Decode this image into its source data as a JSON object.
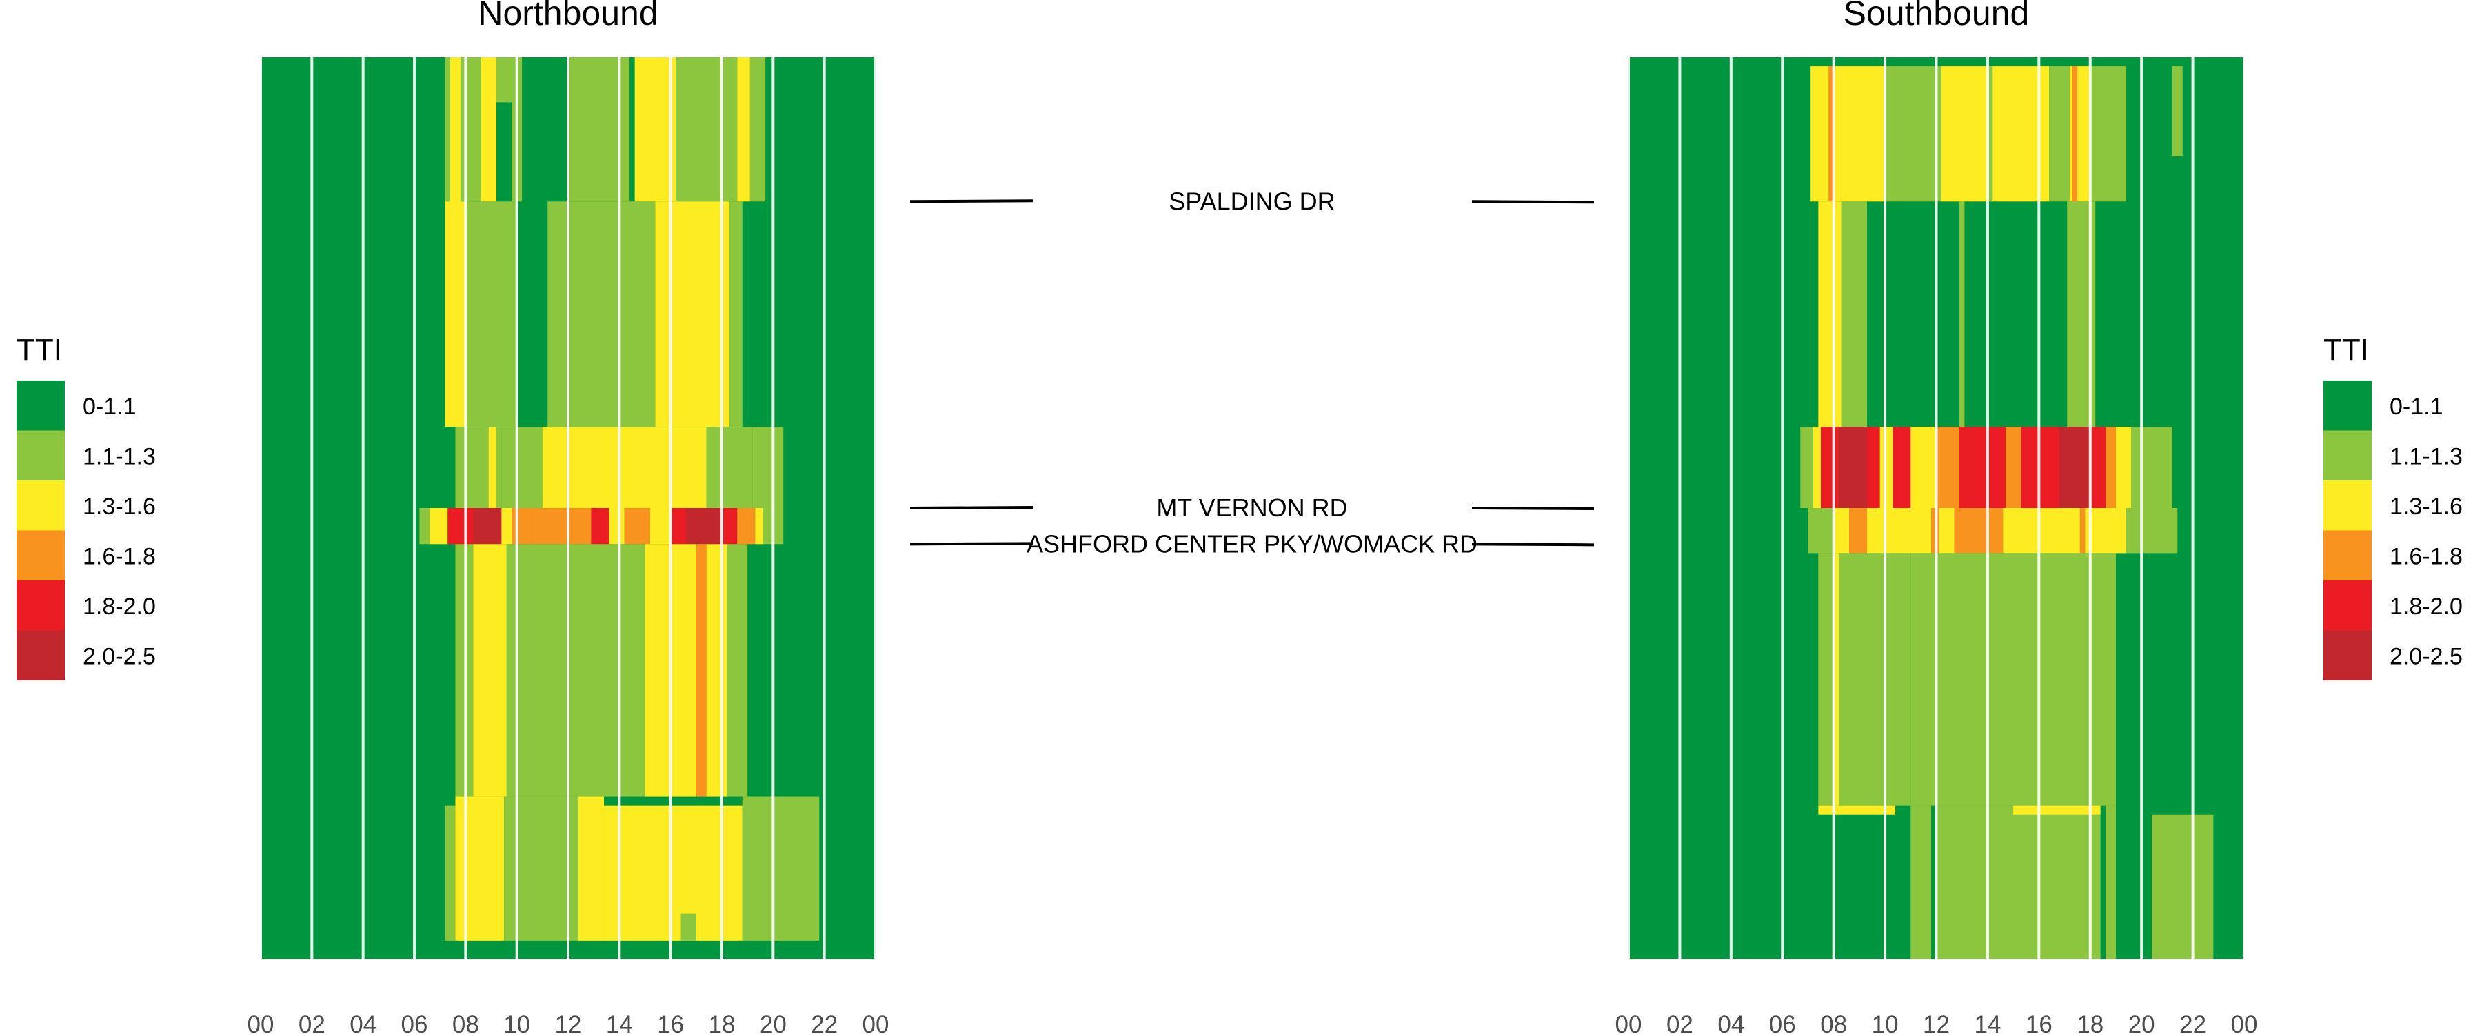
{
  "chart_data": {
    "type": "heatmap",
    "metric": "TTI",
    "x_ticks": [
      "00",
      "02",
      "04",
      "06",
      "08",
      "10",
      "12",
      "14",
      "16",
      "18",
      "20",
      "22",
      "00"
    ],
    "x_range_hours": [
      0,
      24
    ],
    "legend": {
      "title": "TTI",
      "placement": "left and right",
      "bins": [
        {
          "label": "0-1.1",
          "color": "#00963f"
        },
        {
          "label": "1.1-1.3",
          "color": "#8cc63f"
        },
        {
          "label": "1.3-1.6",
          "color": "#fcec21"
        },
        {
          "label": "1.6-1.8",
          "color": "#f7931e"
        },
        {
          "label": "1.8-2.0",
          "color": "#ec1c24"
        },
        {
          "label": "2.0-2.5",
          "color": "#c1272d"
        }
      ]
    },
    "segment_extent": [
      0,
      100
    ],
    "landmarks": [
      {
        "label": "SPALDING DR",
        "nb_pos": 16,
        "sb_pos": 16
      },
      {
        "label": "MT VERNON RD",
        "nb_pos": 50,
        "sb_pos": 50
      },
      {
        "label": "ASHFORD CENTER PKY/WOMACK RD",
        "nb_pos": 54,
        "sb_pos": 54
      }
    ],
    "panels": [
      {
        "title": "Northbound",
        "background_level": "0-1.1",
        "cells": [
          {
            "h0": 7.0,
            "h1": 20.0,
            "s0": 0,
            "s1": 16,
            "level": "0-1.1"
          },
          {
            "h0": 7.2,
            "h1": 8.6,
            "s0": 0,
            "s1": 16,
            "level": "1.1-1.3"
          },
          {
            "h0": 7.4,
            "h1": 7.8,
            "s0": 0,
            "s1": 40,
            "level": "1.3-1.6"
          },
          {
            "h0": 8.6,
            "h1": 9.2,
            "s0": 0,
            "s1": 16,
            "level": "1.3-1.6"
          },
          {
            "h0": 9.2,
            "h1": 9.8,
            "s0": 0,
            "s1": 5,
            "level": "1.1-1.3"
          },
          {
            "h0": 9.8,
            "h1": 10.2,
            "s0": 0,
            "s1": 16,
            "level": "1.1-1.3"
          },
          {
            "h0": 12.0,
            "h1": 14.4,
            "s0": 0,
            "s1": 16,
            "level": "1.1-1.3"
          },
          {
            "h0": 14.4,
            "h1": 14.6,
            "s0": 0,
            "s1": 16,
            "level": "0-1.1"
          },
          {
            "h0": 14.6,
            "h1": 16.2,
            "s0": 0,
            "s1": 16,
            "level": "1.3-1.6"
          },
          {
            "h0": 16.2,
            "h1": 18.6,
            "s0": 0,
            "s1": 16,
            "level": "1.1-1.3"
          },
          {
            "h0": 18.6,
            "h1": 19.1,
            "s0": 0,
            "s1": 16,
            "level": "1.3-1.6"
          },
          {
            "h0": 19.1,
            "h1": 19.7,
            "s0": 0,
            "s1": 16,
            "level": "1.1-1.3"
          },
          {
            "h0": 7.2,
            "h1": 8.0,
            "s0": 16,
            "s1": 41,
            "level": "1.3-1.6"
          },
          {
            "h0": 8.0,
            "h1": 10.0,
            "s0": 16,
            "s1": 41,
            "level": "1.1-1.3"
          },
          {
            "h0": 11.2,
            "h1": 15.4,
            "s0": 16,
            "s1": 41,
            "level": "1.1-1.3"
          },
          {
            "h0": 15.4,
            "h1": 18.3,
            "s0": 16,
            "s1": 41,
            "level": "1.3-1.6"
          },
          {
            "h0": 18.3,
            "h1": 18.8,
            "s0": 16,
            "s1": 41,
            "level": "1.1-1.3"
          },
          {
            "h0": 7.6,
            "h1": 9.4,
            "s0": 41,
            "s1": 50,
            "level": "1.1-1.3"
          },
          {
            "h0": 8.9,
            "h1": 9.2,
            "s0": 41,
            "s1": 50,
            "level": "1.3-1.6"
          },
          {
            "h0": 9.4,
            "h1": 11.0,
            "s0": 41,
            "s1": 50,
            "level": "1.1-1.3"
          },
          {
            "h0": 11.0,
            "h1": 17.4,
            "s0": 41,
            "s1": 50,
            "level": "1.3-1.6"
          },
          {
            "h0": 17.4,
            "h1": 19.2,
            "s0": 41,
            "s1": 50,
            "level": "1.1-1.3"
          },
          {
            "h0": 19.2,
            "h1": 20.4,
            "s0": 41,
            "s1": 50,
            "level": "1.1-1.3"
          },
          {
            "h0": 6.2,
            "h1": 6.6,
            "s0": 50,
            "s1": 54,
            "level": "1.1-1.3"
          },
          {
            "h0": 6.6,
            "h1": 7.3,
            "s0": 50,
            "s1": 54,
            "level": "1.3-1.6"
          },
          {
            "h0": 7.3,
            "h1": 7.6,
            "s0": 50,
            "s1": 54,
            "level": "1.8-2.0"
          },
          {
            "h0": 7.6,
            "h1": 8.3,
            "s0": 50,
            "s1": 54,
            "level": "1.8-2.0"
          },
          {
            "h0": 8.3,
            "h1": 9.4,
            "s0": 50,
            "s1": 54,
            "level": "2.0-2.5"
          },
          {
            "h0": 9.4,
            "h1": 9.8,
            "s0": 50,
            "s1": 54,
            "level": "1.3-1.6"
          },
          {
            "h0": 9.8,
            "h1": 10.6,
            "s0": 50,
            "s1": 54,
            "level": "1.6-1.8"
          },
          {
            "h0": 10.6,
            "h1": 12.9,
            "s0": 50,
            "s1": 54,
            "level": "1.6-1.8"
          },
          {
            "h0": 12.9,
            "h1": 13.6,
            "s0": 50,
            "s1": 54,
            "level": "1.8-2.0"
          },
          {
            "h0": 13.6,
            "h1": 14.2,
            "s0": 50,
            "s1": 54,
            "level": "1.3-1.6"
          },
          {
            "h0": 14.2,
            "h1": 15.2,
            "s0": 50,
            "s1": 54,
            "level": "1.6-1.8"
          },
          {
            "h0": 15.2,
            "h1": 16.0,
            "s0": 50,
            "s1": 54,
            "level": "1.3-1.6"
          },
          {
            "h0": 16.0,
            "h1": 16.6,
            "s0": 50,
            "s1": 54,
            "level": "1.8-2.0"
          },
          {
            "h0": 16.6,
            "h1": 18.0,
            "s0": 50,
            "s1": 54,
            "level": "2.0-2.5"
          },
          {
            "h0": 18.0,
            "h1": 18.6,
            "s0": 50,
            "s1": 54,
            "level": "1.8-2.0"
          },
          {
            "h0": 18.6,
            "h1": 19.3,
            "s0": 50,
            "s1": 54,
            "level": "1.6-1.8"
          },
          {
            "h0": 19.3,
            "h1": 19.6,
            "s0": 50,
            "s1": 54,
            "level": "1.3-1.6"
          },
          {
            "h0": 19.6,
            "h1": 20.4,
            "s0": 50,
            "s1": 54,
            "level": "1.1-1.3"
          },
          {
            "h0": 7.6,
            "h1": 8.3,
            "s0": 54,
            "s1": 82,
            "level": "1.1-1.3"
          },
          {
            "h0": 8.3,
            "h1": 9.6,
            "s0": 54,
            "s1": 82,
            "level": "1.3-1.6"
          },
          {
            "h0": 9.6,
            "h1": 15.0,
            "s0": 54,
            "s1": 82,
            "level": "1.1-1.3"
          },
          {
            "h0": 15.0,
            "h1": 16.2,
            "s0": 54,
            "s1": 82,
            "level": "1.3-1.6"
          },
          {
            "h0": 16.2,
            "h1": 18.2,
            "s0": 54,
            "s1": 82,
            "level": "1.3-1.6"
          },
          {
            "h0": 17.0,
            "h1": 17.4,
            "s0": 54,
            "s1": 82,
            "level": "1.6-1.8"
          },
          {
            "h0": 18.2,
            "h1": 19.0,
            "s0": 54,
            "s1": 82,
            "level": "1.1-1.3"
          },
          {
            "h0": 7.2,
            "h1": 7.6,
            "s0": 83,
            "s1": 98,
            "level": "1.1-1.3"
          },
          {
            "h0": 7.6,
            "h1": 9.5,
            "s0": 82,
            "s1": 98,
            "level": "1.3-1.6"
          },
          {
            "h0": 9.5,
            "h1": 10.4,
            "s0": 82,
            "s1": 98,
            "level": "1.1-1.3"
          },
          {
            "h0": 10.4,
            "h1": 12.4,
            "s0": 82,
            "s1": 98,
            "level": "1.1-1.3"
          },
          {
            "h0": 12.4,
            "h1": 13.4,
            "s0": 82,
            "s1": 98,
            "level": "1.3-1.6"
          },
          {
            "h0": 13.4,
            "h1": 18.8,
            "s0": 83,
            "s1": 98,
            "level": "1.3-1.6"
          },
          {
            "h0": 16.4,
            "h1": 17.0,
            "s0": 95,
            "s1": 98,
            "level": "1.1-1.3"
          },
          {
            "h0": 18.8,
            "h1": 21.8,
            "s0": 82,
            "s1": 98,
            "level": "1.1-1.3"
          }
        ]
      },
      {
        "title": "Southbound",
        "background_level": "0-1.1",
        "cells": [
          {
            "h0": 7.1,
            "h1": 8.2,
            "s0": 1,
            "s1": 16,
            "level": "1.3-1.6"
          },
          {
            "h0": 7.8,
            "h1": 8.0,
            "s0": 1,
            "s1": 16,
            "level": "1.6-1.8"
          },
          {
            "h0": 8.2,
            "h1": 10.0,
            "s0": 1,
            "s1": 16,
            "level": "1.3-1.6"
          },
          {
            "h0": 10.0,
            "h1": 12.2,
            "s0": 1,
            "s1": 16,
            "level": "1.1-1.3"
          },
          {
            "h0": 12.2,
            "h1": 16.4,
            "s0": 1,
            "s1": 16,
            "level": "1.3-1.6"
          },
          {
            "h0": 14.0,
            "h1": 14.2,
            "s0": 1,
            "s1": 16,
            "level": "1.1-1.3"
          },
          {
            "h0": 16.4,
            "h1": 17.2,
            "s0": 1,
            "s1": 16,
            "level": "1.1-1.3"
          },
          {
            "h0": 17.2,
            "h1": 18.0,
            "s0": 1,
            "s1": 16,
            "level": "1.3-1.6"
          },
          {
            "h0": 17.3,
            "h1": 17.5,
            "s0": 1,
            "s1": 16,
            "level": "1.6-1.8"
          },
          {
            "h0": 18.0,
            "h1": 19.4,
            "s0": 1,
            "s1": 16,
            "level": "1.1-1.3"
          },
          {
            "h0": 21.2,
            "h1": 21.6,
            "s0": 1,
            "s1": 11,
            "level": "1.1-1.3"
          },
          {
            "h0": 7.4,
            "h1": 8.3,
            "s0": 16,
            "s1": 41,
            "level": "1.3-1.6"
          },
          {
            "h0": 8.3,
            "h1": 9.3,
            "s0": 16,
            "s1": 41,
            "level": "1.1-1.3"
          },
          {
            "h0": 12.9,
            "h1": 13.1,
            "s0": 16,
            "s1": 41,
            "level": "1.1-1.3"
          },
          {
            "h0": 17.1,
            "h1": 18.2,
            "s0": 16,
            "s1": 41,
            "level": "1.1-1.3"
          },
          {
            "h0": 6.7,
            "h1": 7.2,
            "s0": 41,
            "s1": 50,
            "level": "1.1-1.3"
          },
          {
            "h0": 7.2,
            "h1": 7.5,
            "s0": 41,
            "s1": 50,
            "level": "1.3-1.6"
          },
          {
            "h0": 7.5,
            "h1": 8.2,
            "s0": 41,
            "s1": 50,
            "level": "1.8-2.0"
          },
          {
            "h0": 8.2,
            "h1": 9.3,
            "s0": 41,
            "s1": 50,
            "level": "2.0-2.5"
          },
          {
            "h0": 9.3,
            "h1": 9.8,
            "s0": 41,
            "s1": 50,
            "level": "1.8-2.0"
          },
          {
            "h0": 9.8,
            "h1": 10.3,
            "s0": 41,
            "s1": 50,
            "level": "1.3-1.6"
          },
          {
            "h0": 10.3,
            "h1": 11.0,
            "s0": 41,
            "s1": 50,
            "level": "1.8-2.0"
          },
          {
            "h0": 11.0,
            "h1": 12.0,
            "s0": 41,
            "s1": 50,
            "level": "1.3-1.6"
          },
          {
            "h0": 12.0,
            "h1": 12.9,
            "s0": 41,
            "s1": 50,
            "level": "1.6-1.8"
          },
          {
            "h0": 12.9,
            "h1": 14.7,
            "s0": 41,
            "s1": 50,
            "level": "1.8-2.0"
          },
          {
            "h0": 14.7,
            "h1": 15.3,
            "s0": 41,
            "s1": 50,
            "level": "1.6-1.8"
          },
          {
            "h0": 15.3,
            "h1": 16.8,
            "s0": 41,
            "s1": 50,
            "level": "1.8-2.0"
          },
          {
            "h0": 16.8,
            "h1": 18.1,
            "s0": 41,
            "s1": 50,
            "level": "2.0-2.5"
          },
          {
            "h0": 18.1,
            "h1": 18.6,
            "s0": 41,
            "s1": 50,
            "level": "1.8-2.0"
          },
          {
            "h0": 18.6,
            "h1": 19.0,
            "s0": 41,
            "s1": 50,
            "level": "1.6-1.8"
          },
          {
            "h0": 19.0,
            "h1": 19.6,
            "s0": 41,
            "s1": 50,
            "level": "1.3-1.6"
          },
          {
            "h0": 19.6,
            "h1": 21.2,
            "s0": 41,
            "s1": 50,
            "level": "1.1-1.3"
          },
          {
            "h0": 7.0,
            "h1": 8.0,
            "s0": 50,
            "s1": 55,
            "level": "1.1-1.3"
          },
          {
            "h0": 8.0,
            "h1": 8.6,
            "s0": 50,
            "s1": 55,
            "level": "1.3-1.6"
          },
          {
            "h0": 8.6,
            "h1": 9.3,
            "s0": 50,
            "s1": 55,
            "level": "1.6-1.8"
          },
          {
            "h0": 9.3,
            "h1": 11.8,
            "s0": 50,
            "s1": 55,
            "level": "1.3-1.6"
          },
          {
            "h0": 11.8,
            "h1": 12.1,
            "s0": 50,
            "s1": 55,
            "level": "1.6-1.8"
          },
          {
            "h0": 12.1,
            "h1": 12.7,
            "s0": 50,
            "s1": 55,
            "level": "1.3-1.6"
          },
          {
            "h0": 12.7,
            "h1": 14.6,
            "s0": 50,
            "s1": 55,
            "level": "1.6-1.8"
          },
          {
            "h0": 14.6,
            "h1": 17.6,
            "s0": 50,
            "s1": 55,
            "level": "1.3-1.6"
          },
          {
            "h0": 17.6,
            "h1": 17.8,
            "s0": 50,
            "s1": 55,
            "level": "1.6-1.8"
          },
          {
            "h0": 17.8,
            "h1": 19.4,
            "s0": 50,
            "s1": 55,
            "level": "1.3-1.6"
          },
          {
            "h0": 19.4,
            "h1": 21.4,
            "s0": 50,
            "s1": 55,
            "level": "1.1-1.3"
          },
          {
            "h0": 7.4,
            "h1": 11.0,
            "s0": 55,
            "s1": 83,
            "level": "1.1-1.3"
          },
          {
            "h0": 8.0,
            "h1": 8.2,
            "s0": 55,
            "s1": 83,
            "level": "1.3-1.6"
          },
          {
            "h0": 11.0,
            "h1": 19.0,
            "s0": 55,
            "s1": 83,
            "level": "1.1-1.3"
          },
          {
            "h0": 11.0,
            "h1": 11.8,
            "s0": 83,
            "s1": 100,
            "level": "1.1-1.3"
          },
          {
            "h0": 12.0,
            "h1": 18.4,
            "s0": 83,
            "s1": 100,
            "level": "1.1-1.3"
          },
          {
            "h0": 18.6,
            "h1": 19.0,
            "s0": 83,
            "s1": 100,
            "level": "1.1-1.3"
          },
          {
            "h0": 20.4,
            "h1": 22.8,
            "s0": 84,
            "s1": 100,
            "level": "1.1-1.3"
          },
          {
            "h0": 7.4,
            "h1": 10.4,
            "s0": 83,
            "s1": 84,
            "level": "1.3-1.6"
          },
          {
            "h0": 15.0,
            "h1": 18.4,
            "s0": 83,
            "s1": 84,
            "level": "1.3-1.6"
          }
        ]
      }
    ]
  }
}
